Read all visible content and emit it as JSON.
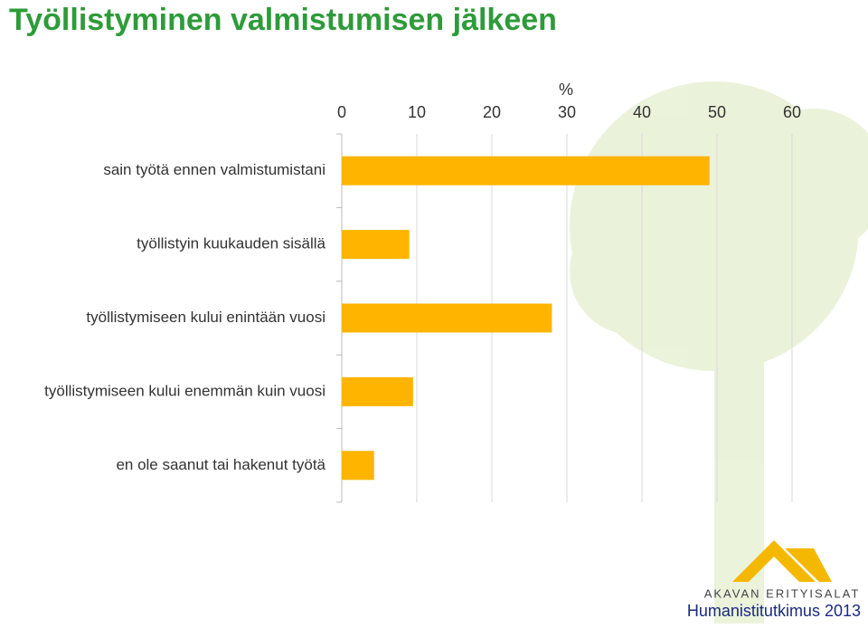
{
  "chart_data": {
    "type": "bar",
    "orientation": "horizontal",
    "title": "Työllistyminen valmistumisen jälkeen",
    "xlabel": "%",
    "categories": [
      "sain työtä ennen valmistumistani",
      "työllistyin kuukauden sisällä",
      "työllistymiseen kului enintään vuosi",
      "työllistymiseen kului enemmän kuin vuosi",
      "en ole saanut tai hakenut työtä"
    ],
    "values": [
      49,
      9,
      28,
      9.5,
      4.3
    ],
    "color": "#ffb400",
    "xlim": [
      0,
      60
    ],
    "xticks": [
      0,
      10,
      20,
      30,
      40,
      50,
      60
    ],
    "grid": true,
    "x_axis_position": "top"
  },
  "footer": {
    "logo": "AKAVAN ERITYISALAT",
    "source": "Humanistitutkimus 2013"
  }
}
